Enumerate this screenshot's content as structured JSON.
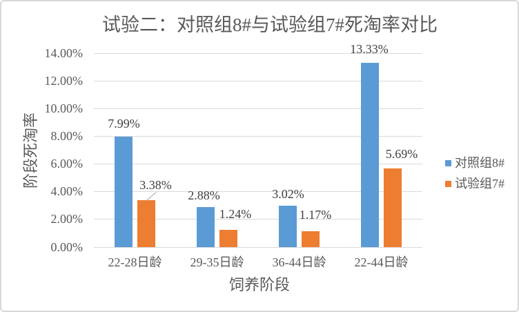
{
  "chart_data": {
    "type": "bar",
    "title": "试验二：对照组8#与试验组7#死淘率对比",
    "categories": [
      "22-28日龄",
      "29-35日龄",
      "36-44日龄",
      "22-44日龄"
    ],
    "series": [
      {
        "name": "对照组8#",
        "color": "#5B9BD5",
        "values": [
          7.99,
          2.88,
          3.02,
          13.33
        ],
        "labels": [
          "7.99%",
          "2.88%",
          "3.02%",
          "13.33%"
        ]
      },
      {
        "name": "试验组7#",
        "color": "#ED7D31",
        "values": [
          3.38,
          1.24,
          1.17,
          5.69
        ],
        "labels": [
          "3.38%",
          "1.24%",
          "1.17%",
          "5.69%"
        ]
      }
    ],
    "xlabel": "饲养阶段",
    "ylabel": "阶段死淘率",
    "ylim": [
      0,
      14
    ],
    "ytick_step": 2,
    "yticks": [
      "0.00%",
      "2.00%",
      "4.00%",
      "6.00%",
      "8.00%",
      "10.00%",
      "12.00%",
      "14.00%"
    ],
    "grid": true,
    "gridline_color": "#D9D9D9",
    "legend_position": "right"
  },
  "legend": {
    "items": [
      {
        "label": "对照组8#",
        "color": "#5B9BD5"
      },
      {
        "label": "试验组7#",
        "color": "#ED7D31"
      }
    ]
  }
}
